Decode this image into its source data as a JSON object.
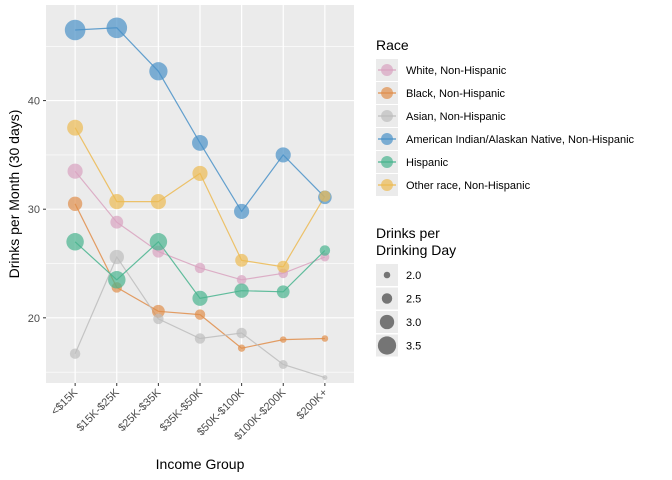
{
  "chart_data": {
    "type": "scatter",
    "xlabel": "Income Group",
    "ylabel": "Drinks per Month (30 days)",
    "categories": [
      "<$15K",
      "$15K-$25K",
      "$25K-$35K",
      "$35K-$50K",
      "$50K-$100K",
      "$100K-$200K",
      "$200K+"
    ],
    "y_ticks": [
      20,
      30,
      40
    ],
    "ylim": [
      14.0,
      48.8
    ],
    "grid": true,
    "legend_placement": "right",
    "color_legend": {
      "title": "Race",
      "entries": [
        {
          "label": "White, Non-Hispanic",
          "color": "#D9A3C0"
        },
        {
          "label": "Black, Non-Hispanic",
          "color": "#E08E4B"
        },
        {
          "label": "Asian, Non-Hispanic",
          "color": "#BDBDBD"
        },
        {
          "label": "American Indian/Alaskan Native, Non-Hispanic",
          "color": "#4A92C8"
        },
        {
          "label": "Hispanic",
          "color": "#48B48E"
        },
        {
          "label": "Other race, Non-Hispanic",
          "color": "#ECBA52"
        }
      ]
    },
    "size_legend": {
      "title_lines": [
        "Drinks per",
        "Drinking Day"
      ],
      "entries": [
        {
          "label": "2.0",
          "value": 2.0
        },
        {
          "label": "2.5",
          "value": 2.5
        },
        {
          "label": "3.0",
          "value": 3.0
        },
        {
          "label": "3.5",
          "value": 3.5
        }
      ]
    },
    "series": [
      {
        "name": "White, Non-Hispanic",
        "values": [
          33.5,
          28.8,
          26.1,
          24.6,
          23.5,
          24.1,
          25.6
        ],
        "sizes": [
          3.1,
          2.8,
          2.7,
          2.5,
          2.4,
          2.4,
          2.3
        ]
      },
      {
        "name": "Black, Non-Hispanic",
        "values": [
          30.5,
          22.8,
          20.6,
          20.3,
          17.2,
          18.0,
          18.1
        ],
        "sizes": [
          3.0,
          2.5,
          2.8,
          2.5,
          2.1,
          2.0,
          2.0
        ]
      },
      {
        "name": "Asian, Non-Hispanic",
        "values": [
          16.7,
          25.6,
          19.9,
          18.1,
          18.6,
          15.7,
          14.5
        ],
        "sizes": [
          2.5,
          3.0,
          2.5,
          2.5,
          2.5,
          2.3,
          1.8
        ]
      },
      {
        "name": "American Indian/Alaskan Native, Non-Hispanic",
        "values": [
          46.5,
          46.7,
          42.7,
          36.1,
          29.8,
          35.0,
          31.1
        ],
        "sizes": [
          3.8,
          3.8,
          3.5,
          3.2,
          3.1,
          3.1,
          2.9
        ]
      },
      {
        "name": "Hispanic",
        "values": [
          27.0,
          23.5,
          27.0,
          21.8,
          22.5,
          22.4,
          26.2
        ],
        "sizes": [
          3.4,
          3.4,
          3.4,
          3.1,
          3.0,
          2.8,
          2.5
        ]
      },
      {
        "name": "Other race, Non-Hispanic",
        "values": [
          37.5,
          30.7,
          30.7,
          33.3,
          25.3,
          24.7,
          31.2
        ],
        "sizes": [
          3.2,
          3.1,
          3.1,
          3.1,
          2.8,
          2.7,
          2.6
        ]
      }
    ]
  }
}
